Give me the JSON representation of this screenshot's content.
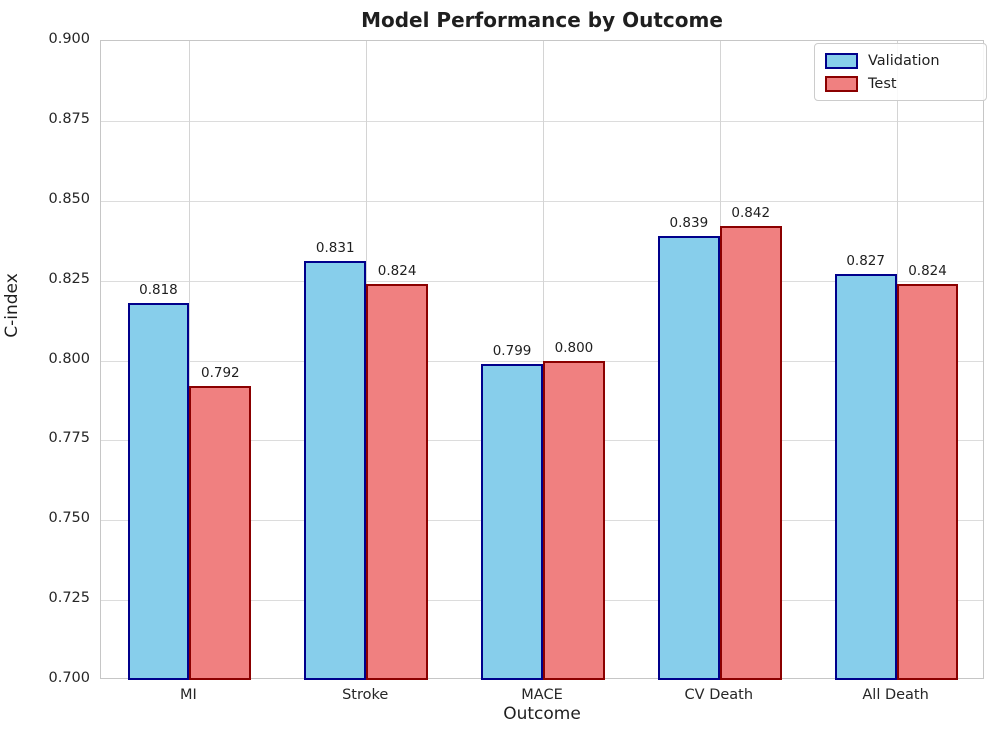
{
  "chart_data": {
    "type": "bar",
    "title": "Model Performance by Outcome",
    "xlabel": "Outcome",
    "ylabel": "C-index",
    "categories": [
      "MI",
      "Stroke",
      "MACE",
      "CV Death",
      "All Death"
    ],
    "series": [
      {
        "name": "Validation",
        "values": [
          0.818,
          0.831,
          0.799,
          0.839,
          0.827
        ],
        "fill_color": "#87CEEB",
        "edge_color": "#00008B"
      },
      {
        "name": "Test",
        "values": [
          0.792,
          0.824,
          0.8,
          0.842,
          0.824
        ],
        "fill_color": "#F08080",
        "edge_color": "#8B0000"
      }
    ],
    "value_labels": [
      "0.818",
      "0.792",
      "0.831",
      "0.824",
      "0.799",
      "0.800",
      "0.839",
      "0.842",
      "0.827",
      "0.824"
    ],
    "ylim": [
      0.7,
      0.9
    ],
    "yticks": [
      "0.700",
      "0.725",
      "0.750",
      "0.775",
      "0.800",
      "0.825",
      "0.850",
      "0.875",
      "0.900"
    ],
    "grid": true,
    "legend_position": "upper right",
    "bar_width_fraction": 0.35
  }
}
